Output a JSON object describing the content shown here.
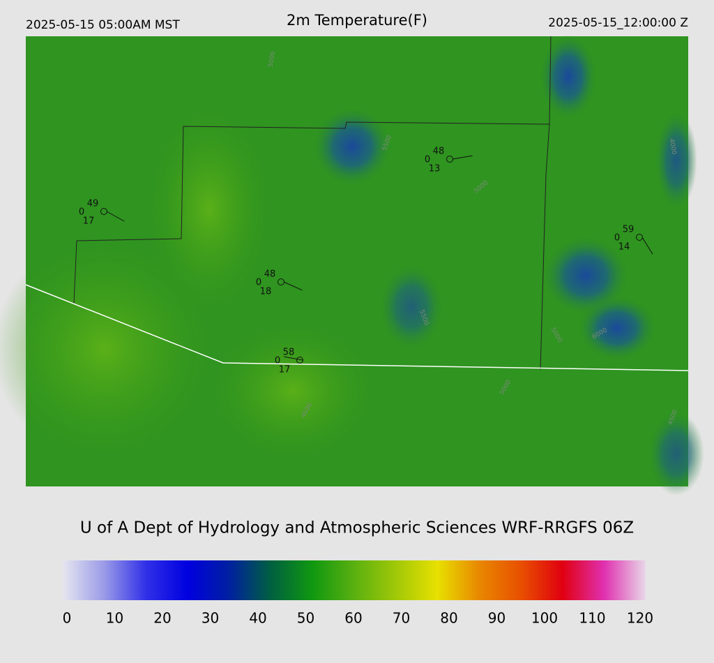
{
  "header": {
    "left": "2025-05-15 05:00AM MST",
    "title": "2m Temperature(F)",
    "right": "2025-05-15_12:00:00 Z"
  },
  "stations": [
    {
      "temperature": "49",
      "cloud": "0",
      "dewpoint": "17"
    },
    {
      "temperature": "48",
      "cloud": "0",
      "dewpoint": "13"
    },
    {
      "temperature": "48",
      "cloud": "0",
      "dewpoint": "18"
    },
    {
      "temperature": "58",
      "cloud": "0",
      "dewpoint": "17"
    },
    {
      "temperature": "59",
      "cloud": "0",
      "dewpoint": "14"
    }
  ],
  "contour_labels": [
    "5000",
    "5500",
    "5000",
    "6000",
    "5500",
    "5000",
    "4500",
    "5000",
    "4000",
    "4500"
  ],
  "footer": "U of A Dept of Hydrology and Atmospheric Sciences WRF-RRGFS 06Z",
  "colorbar": {
    "ticks": [
      0,
      10,
      20,
      30,
      40,
      50,
      60,
      70,
      80,
      90,
      100,
      110,
      120
    ],
    "range": [
      0,
      120
    ],
    "stops": [
      "#e6e6f0",
      "#9a9ae8",
      "#3030e8",
      "#0000e0",
      "#0020a0",
      "#006040",
      "#109810",
      "#5ab010",
      "#a0c808",
      "#e8e000",
      "#e88800",
      "#e85000",
      "#e00010",
      "#e030b0",
      "#e8d8e8"
    ]
  }
}
